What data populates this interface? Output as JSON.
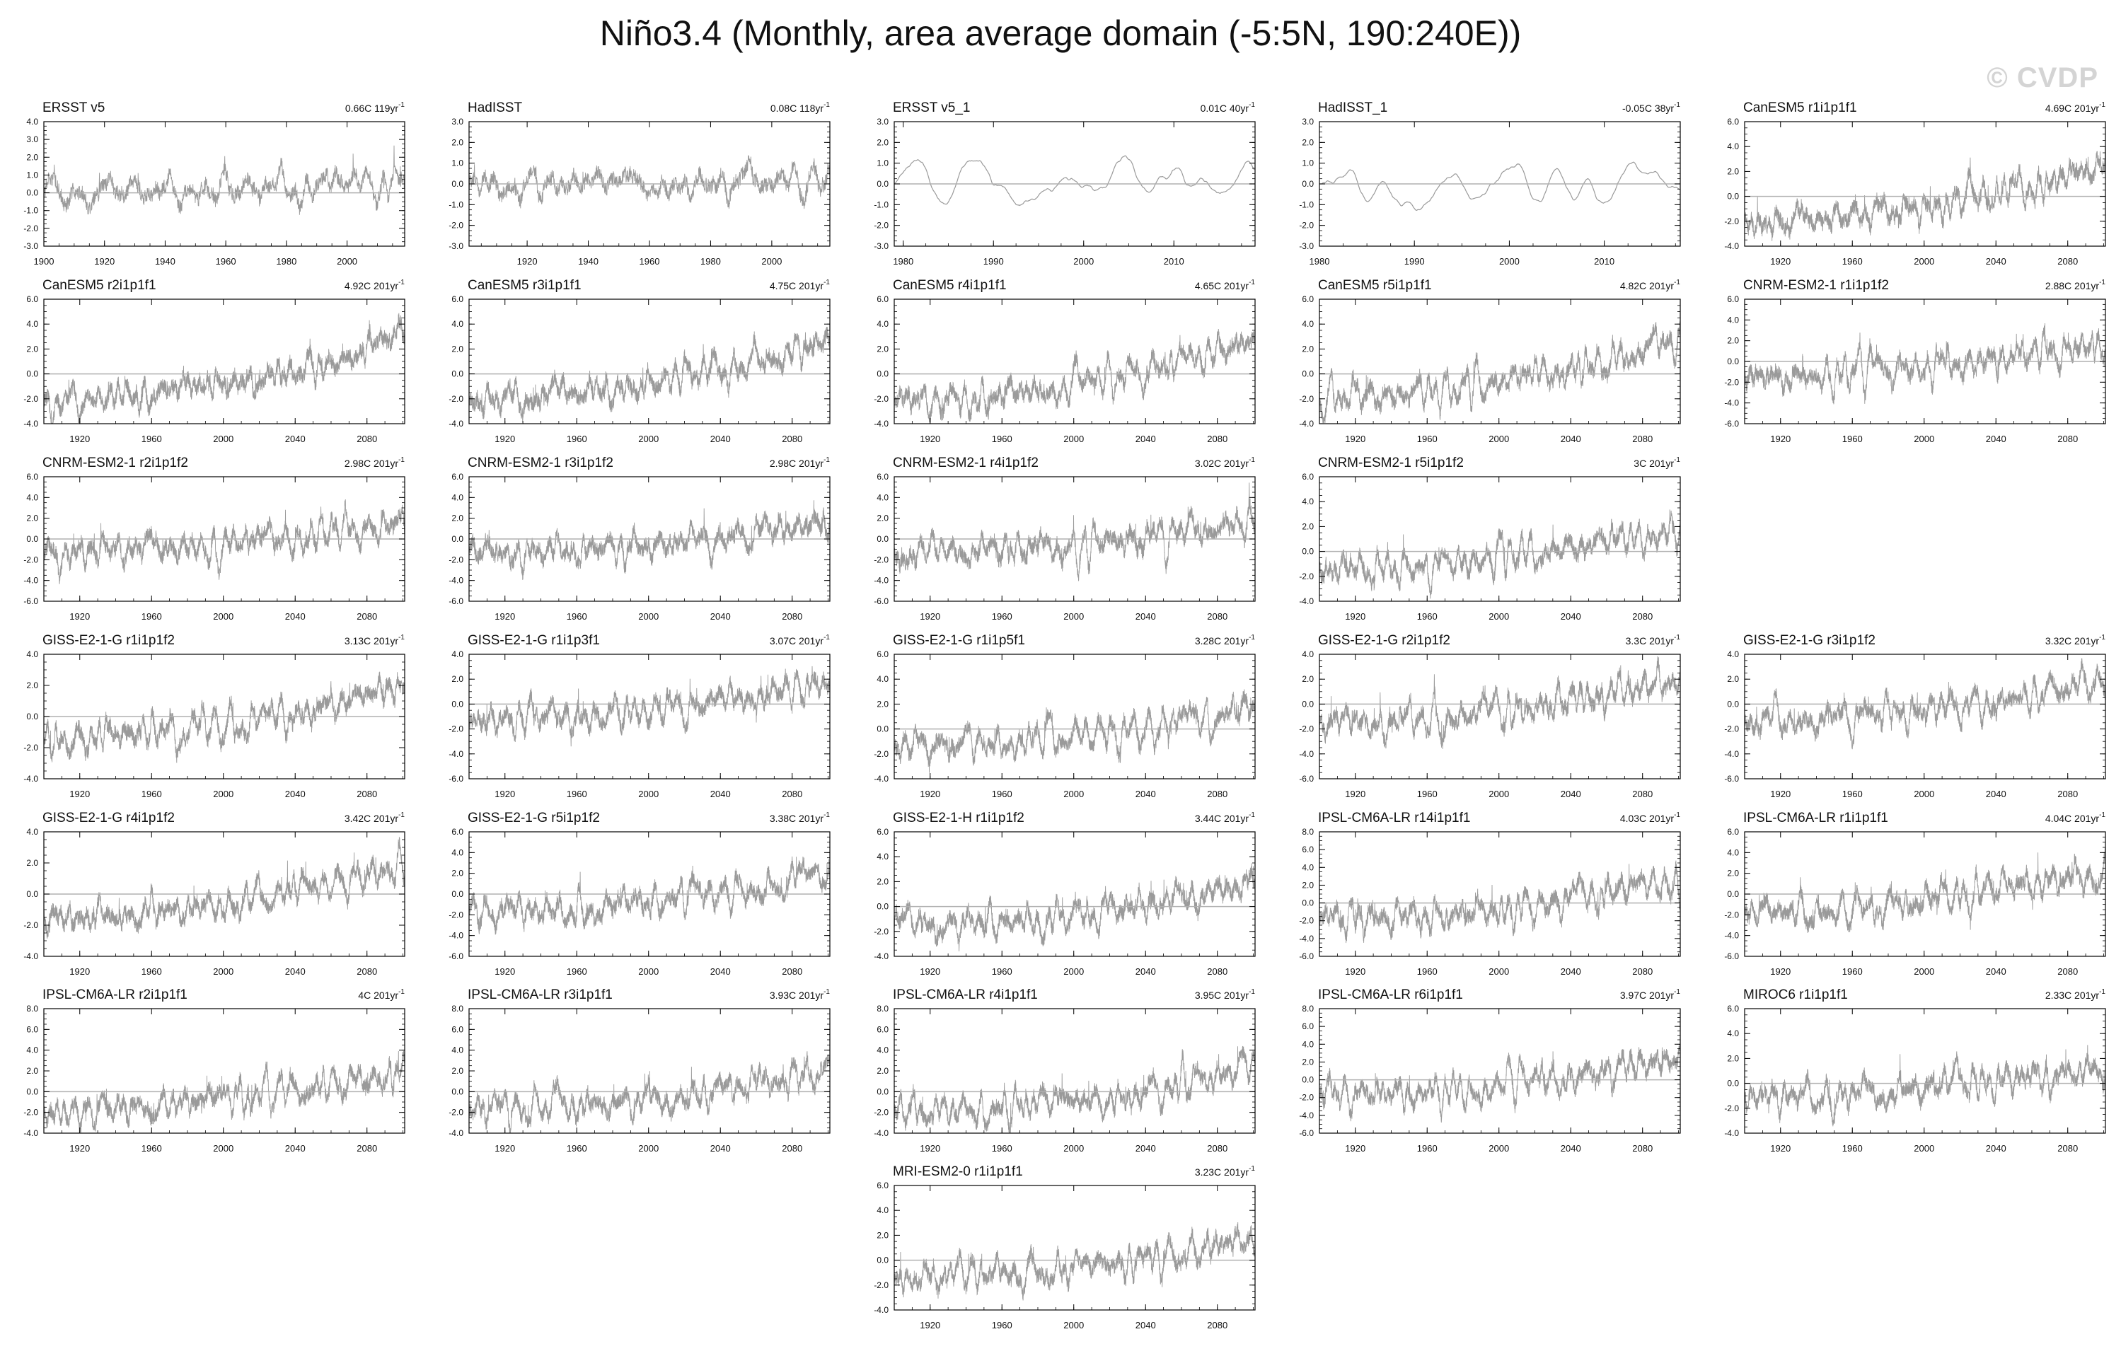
{
  "title": "Niño3.4 (Monthly, area average domain (-5:5N, 190:240E))",
  "watermark": "© CVDP",
  "colors": {
    "series": "#9a9a9a",
    "zero_line": "#b0b0b0",
    "axis": "#000000"
  },
  "chart_data": [
    {
      "type": "line",
      "label": "ERSST v5",
      "trend": "0.66C 119yr",
      "xlim": [
        1900,
        2019
      ],
      "xticks": [
        1900,
        1920,
        1940,
        1960,
        1980,
        2000
      ],
      "ylim": [
        -3,
        4
      ],
      "yticks": [
        4,
        3,
        2,
        1,
        0,
        -1,
        -2,
        -3
      ],
      "seed": 1,
      "trend_total": 0.66
    },
    {
      "type": "line",
      "label": "HadISST",
      "trend": "0.08C 118yr",
      "xlim": [
        1901,
        2019
      ],
      "xticks": [
        1920,
        1940,
        1960,
        1980,
        2000
      ],
      "ylim": [
        -3,
        3
      ],
      "yticks": [
        3,
        2,
        1,
        0,
        -1,
        -2,
        -3
      ],
      "seed": 2,
      "trend_total": 0.08
    },
    {
      "type": "line",
      "label": "ERSST v5_1",
      "trend": "0.01C 40yr",
      "xlim": [
        1979,
        2019
      ],
      "xticks": [
        1980,
        1990,
        2000,
        2010
      ],
      "ylim": [
        -3,
        3
      ],
      "yticks": [
        3,
        2,
        1,
        0,
        -1,
        -2,
        -3
      ],
      "seed": 3,
      "trend_total": 0.01
    },
    {
      "type": "line",
      "label": "HadISST_1",
      "trend": "-0.05C 38yr",
      "xlim": [
        1980,
        2018
      ],
      "xticks": [
        1980,
        1990,
        2000,
        2010
      ],
      "ylim": [
        -3,
        3
      ],
      "yticks": [
        3,
        2,
        1,
        0,
        -1,
        -2,
        -3
      ],
      "seed": 4,
      "trend_total": -0.05
    },
    {
      "type": "line",
      "label": "CanESM5 r1i1p1f1",
      "trend": "4.69C 201yr",
      "xlim": [
        1900,
        2101
      ],
      "xticks": [
        1920,
        1960,
        2000,
        2040,
        2080
      ],
      "ylim": [
        -4,
        6
      ],
      "yticks": [
        6,
        4,
        2,
        0,
        -2,
        -4
      ],
      "seed": 5,
      "trend_total": 4.69
    },
    {
      "type": "line",
      "label": "CanESM5 r2i1p1f1",
      "trend": "4.92C 201yr",
      "xlim": [
        1900,
        2101
      ],
      "xticks": [
        1920,
        1960,
        2000,
        2040,
        2080
      ],
      "ylim": [
        -4,
        6
      ],
      "yticks": [
        6,
        4,
        2,
        0,
        -2,
        -4
      ],
      "seed": 6,
      "trend_total": 4.92
    },
    {
      "type": "line",
      "label": "CanESM5 r3i1p1f1",
      "trend": "4.75C 201yr",
      "xlim": [
        1900,
        2101
      ],
      "xticks": [
        1920,
        1960,
        2000,
        2040,
        2080
      ],
      "ylim": [
        -4,
        6
      ],
      "yticks": [
        6,
        4,
        2,
        0,
        -2,
        -4
      ],
      "seed": 7,
      "trend_total": 4.75
    },
    {
      "type": "line",
      "label": "CanESM5 r4i1p1f1",
      "trend": "4.65C 201yr",
      "xlim": [
        1900,
        2101
      ],
      "xticks": [
        1920,
        1960,
        2000,
        2040,
        2080
      ],
      "ylim": [
        -4,
        6
      ],
      "yticks": [
        6,
        4,
        2,
        0,
        -2,
        -4
      ],
      "seed": 8,
      "trend_total": 4.65
    },
    {
      "type": "line",
      "label": "CanESM5 r5i1p1f1",
      "trend": "4.82C 201yr",
      "xlim": [
        1900,
        2101
      ],
      "xticks": [
        1920,
        1960,
        2000,
        2040,
        2080
      ],
      "ylim": [
        -4,
        6
      ],
      "yticks": [
        6,
        4,
        2,
        0,
        -2,
        -4
      ],
      "seed": 9,
      "trend_total": 4.82
    },
    {
      "type": "line",
      "label": "CNRM-ESM2-1 r1i1p1f2",
      "trend": "2.88C 201yr",
      "xlim": [
        1900,
        2101
      ],
      "xticks": [
        1920,
        1960,
        2000,
        2040,
        2080
      ],
      "ylim": [
        -6,
        6
      ],
      "yticks": [
        6,
        4,
        2,
        0,
        -2,
        -4,
        -6
      ],
      "seed": 10,
      "trend_total": 2.88
    },
    {
      "type": "line",
      "label": "CNRM-ESM2-1 r2i1p1f2",
      "trend": "2.98C 201yr",
      "xlim": [
        1900,
        2101
      ],
      "xticks": [
        1920,
        1960,
        2000,
        2040,
        2080
      ],
      "ylim": [
        -6,
        6
      ],
      "yticks": [
        6,
        4,
        2,
        0,
        -2,
        -4,
        -6
      ],
      "seed": 11,
      "trend_total": 2.98
    },
    {
      "type": "line",
      "label": "CNRM-ESM2-1 r3i1p1f2",
      "trend": "2.98C 201yr",
      "xlim": [
        1900,
        2101
      ],
      "xticks": [
        1920,
        1960,
        2000,
        2040,
        2080
      ],
      "ylim": [
        -6,
        6
      ],
      "yticks": [
        6,
        4,
        2,
        0,
        -2,
        -4,
        -6
      ],
      "seed": 12,
      "trend_total": 2.98
    },
    {
      "type": "line",
      "label": "CNRM-ESM2-1 r4i1p1f2",
      "trend": "3.02C 201yr",
      "xlim": [
        1900,
        2101
      ],
      "xticks": [
        1920,
        1960,
        2000,
        2040,
        2080
      ],
      "ylim": [
        -6,
        6
      ],
      "yticks": [
        6,
        4,
        2,
        0,
        -2,
        -4,
        -6
      ],
      "seed": 13,
      "trend_total": 3.02
    },
    {
      "type": "line",
      "label": "CNRM-ESM2-1 r5i1p1f2",
      "trend": "3C 201yr",
      "xlim": [
        1900,
        2101
      ],
      "xticks": [
        1920,
        1960,
        2000,
        2040,
        2080
      ],
      "ylim": [
        -4,
        6
      ],
      "yticks": [
        6,
        4,
        2,
        0,
        -2,
        -4
      ],
      "seed": 14,
      "trend_total": 3.0
    },
    {
      "type": "line",
      "label": "GISS-E2-1-G r1i1p1f2",
      "trend": "3.13C 201yr",
      "xlim": [
        1900,
        2101
      ],
      "xticks": [
        1920,
        1960,
        2000,
        2040,
        2080
      ],
      "ylim": [
        -4,
        4
      ],
      "yticks": [
        4,
        2,
        0,
        -2,
        -4
      ],
      "seed": 15,
      "trend_total": 3.13
    },
    {
      "type": "line",
      "label": "GISS-E2-1-G r1i1p3f1",
      "trend": "3.07C 201yr",
      "xlim": [
        1900,
        2101
      ],
      "xticks": [
        1920,
        1960,
        2000,
        2040,
        2080
      ],
      "ylim": [
        -6,
        4
      ],
      "yticks": [
        4,
        2,
        0,
        -2,
        -4,
        -6
      ],
      "seed": 16,
      "trend_total": 3.07
    },
    {
      "type": "line",
      "label": "GISS-E2-1-G r1i1p5f1",
      "trend": "3.28C 201yr",
      "xlim": [
        1900,
        2101
      ],
      "xticks": [
        1920,
        1960,
        2000,
        2040,
        2080
      ],
      "ylim": [
        -4,
        6
      ],
      "yticks": [
        6,
        4,
        2,
        0,
        -2,
        -4
      ],
      "seed": 17,
      "trend_total": 3.28
    },
    {
      "type": "line",
      "label": "GISS-E2-1-G r2i1p1f2",
      "trend": "3.3C 201yr",
      "xlim": [
        1900,
        2101
      ],
      "xticks": [
        1920,
        1960,
        2000,
        2040,
        2080
      ],
      "ylim": [
        -6,
        4
      ],
      "yticks": [
        4,
        2,
        0,
        -2,
        -4,
        -6
      ],
      "seed": 18,
      "trend_total": 3.3
    },
    {
      "type": "line",
      "label": "GISS-E2-1-G r3i1p1f2",
      "trend": "3.32C 201yr",
      "xlim": [
        1900,
        2101
      ],
      "xticks": [
        1920,
        1960,
        2000,
        2040,
        2080
      ],
      "ylim": [
        -6,
        4
      ],
      "yticks": [
        4,
        2,
        0,
        -2,
        -4,
        -6
      ],
      "seed": 19,
      "trend_total": 3.32
    },
    {
      "type": "line",
      "label": "GISS-E2-1-G r4i1p1f2",
      "trend": "3.42C 201yr",
      "xlim": [
        1900,
        2101
      ],
      "xticks": [
        1920,
        1960,
        2000,
        2040,
        2080
      ],
      "ylim": [
        -4,
        4
      ],
      "yticks": [
        4,
        2,
        0,
        -2,
        -4
      ],
      "seed": 20,
      "trend_total": 3.42
    },
    {
      "type": "line",
      "label": "GISS-E2-1-G r5i1p1f2",
      "trend": "3.38C 201yr",
      "xlim": [
        1900,
        2101
      ],
      "xticks": [
        1920,
        1960,
        2000,
        2040,
        2080
      ],
      "ylim": [
        -6,
        6
      ],
      "yticks": [
        6,
        4,
        2,
        0,
        -2,
        -4,
        -6
      ],
      "seed": 21,
      "trend_total": 3.38
    },
    {
      "type": "line",
      "label": "GISS-E2-1-H r1i1p1f2",
      "trend": "3.44C 201yr",
      "xlim": [
        1900,
        2101
      ],
      "xticks": [
        1920,
        1960,
        2000,
        2040,
        2080
      ],
      "ylim": [
        -4,
        6
      ],
      "yticks": [
        6,
        4,
        2,
        0,
        -2,
        -4
      ],
      "seed": 22,
      "trend_total": 3.44
    },
    {
      "type": "line",
      "label": "IPSL-CM6A-LR r14i1p1f1",
      "trend": "4.03C 201yr",
      "xlim": [
        1900,
        2101
      ],
      "xticks": [
        1920,
        1960,
        2000,
        2040,
        2080
      ],
      "ylim": [
        -6,
        8
      ],
      "yticks": [
        8,
        6,
        4,
        2,
        0,
        -2,
        -4,
        -6
      ],
      "seed": 23,
      "trend_total": 4.03
    },
    {
      "type": "line",
      "label": "IPSL-CM6A-LR r1i1p1f1",
      "trend": "4.04C 201yr",
      "xlim": [
        1900,
        2101
      ],
      "xticks": [
        1920,
        1960,
        2000,
        2040,
        2080
      ],
      "ylim": [
        -6,
        6
      ],
      "yticks": [
        6,
        4,
        2,
        0,
        -2,
        -4,
        -6
      ],
      "seed": 24,
      "trend_total": 4.04
    },
    {
      "type": "line",
      "label": "IPSL-CM6A-LR r2i1p1f1",
      "trend": "4C 201yr",
      "xlim": [
        1900,
        2101
      ],
      "xticks": [
        1920,
        1960,
        2000,
        2040,
        2080
      ],
      "ylim": [
        -4,
        8
      ],
      "yticks": [
        8,
        6,
        4,
        2,
        0,
        -2,
        -4
      ],
      "seed": 25,
      "trend_total": 4.0
    },
    {
      "type": "line",
      "label": "IPSL-CM6A-LR r3i1p1f1",
      "trend": "3.93C 201yr",
      "xlim": [
        1900,
        2101
      ],
      "xticks": [
        1920,
        1960,
        2000,
        2040,
        2080
      ],
      "ylim": [
        -4,
        8
      ],
      "yticks": [
        8,
        6,
        4,
        2,
        0,
        -2,
        -4
      ],
      "seed": 26,
      "trend_total": 3.93
    },
    {
      "type": "line",
      "label": "IPSL-CM6A-LR r4i1p1f1",
      "trend": "3.95C 201yr",
      "xlim": [
        1900,
        2101
      ],
      "xticks": [
        1920,
        1960,
        2000,
        2040,
        2080
      ],
      "ylim": [
        -4,
        8
      ],
      "yticks": [
        8,
        6,
        4,
        2,
        0,
        -2,
        -4
      ],
      "seed": 27,
      "trend_total": 3.95
    },
    {
      "type": "line",
      "label": "IPSL-CM6A-LR r6i1p1f1",
      "trend": "3.97C 201yr",
      "xlim": [
        1900,
        2101
      ],
      "xticks": [
        1920,
        1960,
        2000,
        2040,
        2080
      ],
      "ylim": [
        -6,
        8
      ],
      "yticks": [
        8,
        6,
        4,
        2,
        0,
        -2,
        -4,
        -6
      ],
      "seed": 28,
      "trend_total": 3.97
    },
    {
      "type": "line",
      "label": "MIROC6 r1i1p1f1",
      "trend": "2.33C 201yr",
      "xlim": [
        1900,
        2101
      ],
      "xticks": [
        1920,
        1960,
        2000,
        2040,
        2080
      ],
      "ylim": [
        -4,
        6
      ],
      "yticks": [
        6,
        4,
        2,
        0,
        -2,
        -4
      ],
      "seed": 29,
      "trend_total": 2.33
    },
    {
      "type": "line",
      "label": "MRI-ESM2-0 r1i1p1f1",
      "trend": "3.23C 201yr",
      "xlim": [
        1900,
        2101
      ],
      "xticks": [
        1920,
        1960,
        2000,
        2040,
        2080
      ],
      "ylim": [
        -4,
        6
      ],
      "yticks": [
        6,
        4,
        2,
        0,
        -2,
        -4
      ],
      "seed": 30,
      "trend_total": 3.23
    }
  ]
}
